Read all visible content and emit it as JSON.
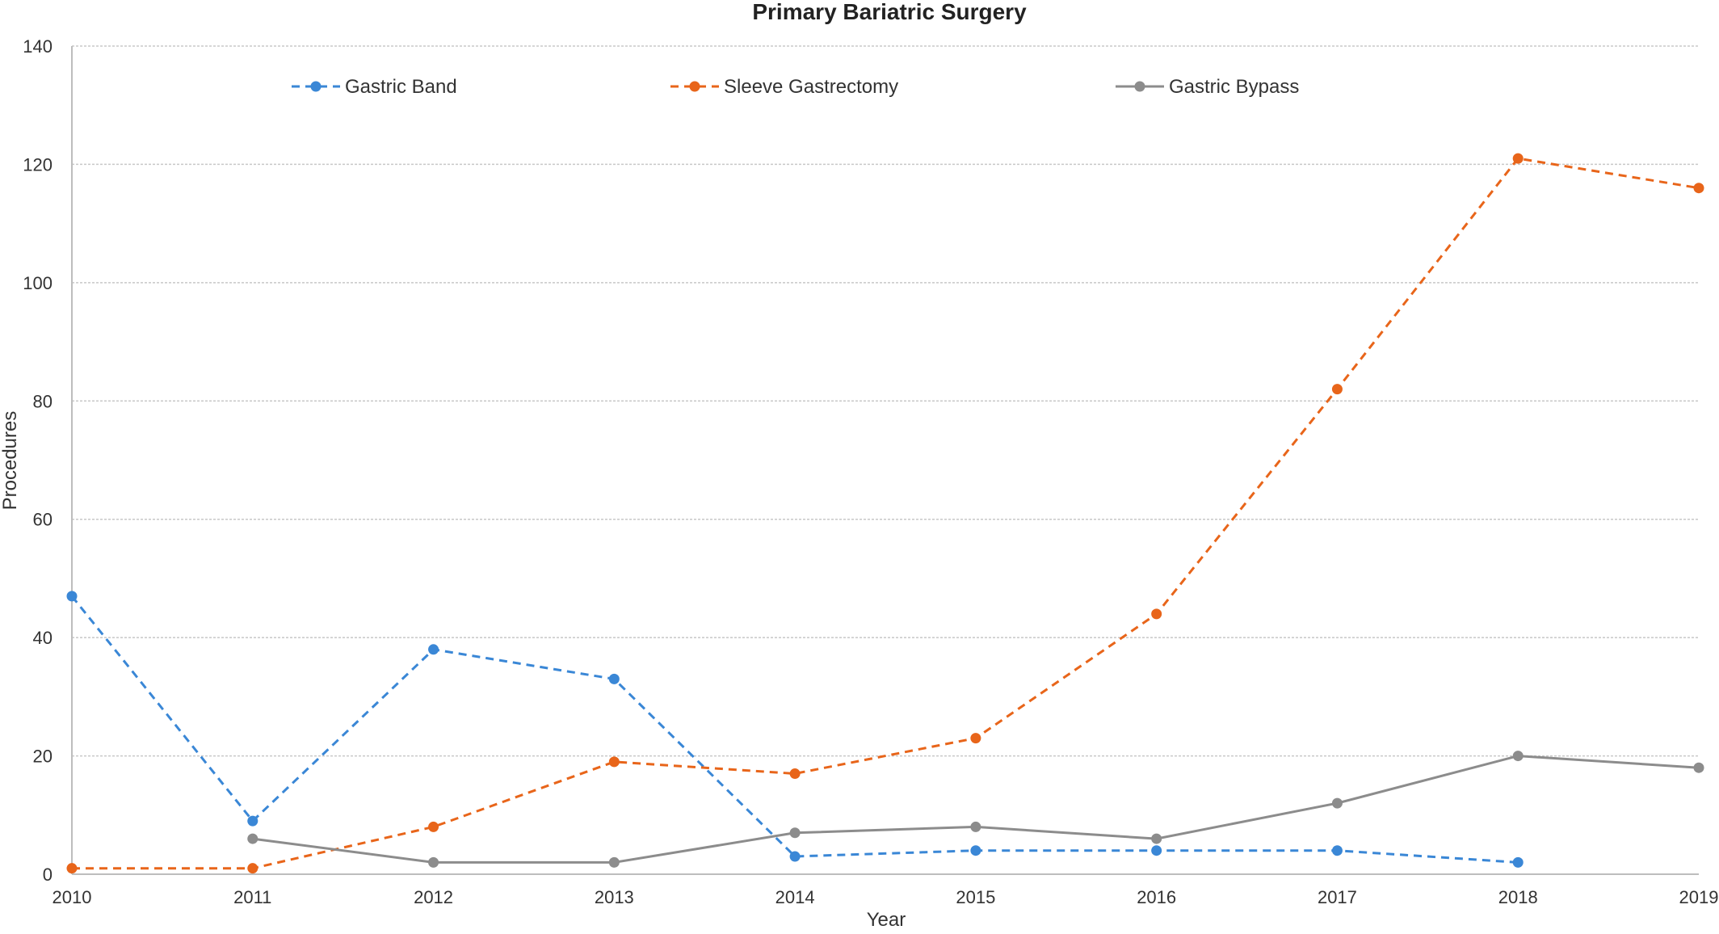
{
  "chart_data": {
    "type": "line",
    "title": "Primary Bariatric Surgery",
    "xlabel": "Year",
    "ylabel": "Procedures",
    "x": [
      2010,
      2011,
      2012,
      2013,
      2014,
      2015,
      2016,
      2017,
      2018,
      2019
    ],
    "ylim": [
      0,
      140
    ],
    "yticks": [
      0,
      20,
      40,
      60,
      80,
      100,
      120,
      140
    ],
    "grid": true,
    "legend_position": "top",
    "series": [
      {
        "name": "Gastric Band",
        "color": "#3a87d6",
        "style": "dashed",
        "values": [
          47,
          9,
          38,
          33,
          3,
          4,
          4,
          4,
          2,
          null
        ]
      },
      {
        "name": "Sleeve Gastrectomy",
        "color": "#e8651a",
        "style": "dashed",
        "values": [
          1,
          1,
          8,
          19,
          17,
          23,
          44,
          82,
          121,
          116
        ]
      },
      {
        "name": "Gastric Bypass",
        "color": "#8c8c8c",
        "style": "solid",
        "values": [
          null,
          6,
          2,
          2,
          7,
          8,
          6,
          12,
          20,
          18
        ]
      }
    ]
  }
}
